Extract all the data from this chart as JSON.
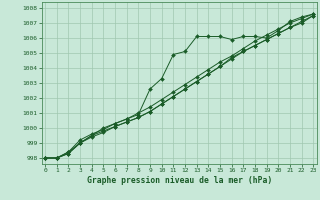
{
  "title": "Graphe pression niveau de la mer (hPa)",
  "bg_color": "#c8e8d8",
  "grid_color": "#a0c8b0",
  "line_color": "#1a5c28",
  "xlim": [
    -0.3,
    23.3
  ],
  "ylim": [
    997.6,
    1008.4
  ],
  "yticks": [
    998,
    999,
    1000,
    1001,
    1002,
    1003,
    1004,
    1005,
    1006,
    1007,
    1008
  ],
  "xticks": [
    0,
    1,
    2,
    3,
    4,
    5,
    6,
    7,
    8,
    9,
    10,
    11,
    12,
    13,
    14,
    15,
    16,
    17,
    18,
    19,
    20,
    21,
    22,
    23
  ],
  "series": [
    [
      998.0,
      998.0,
      998.4,
      999.2,
      999.6,
      999.9,
      1000.3,
      1000.6,
      1000.9,
      1002.6,
      1003.3,
      1004.9,
      1005.1,
      1006.1,
      1006.1,
      1006.1,
      1005.9,
      1006.1,
      1006.1,
      1006.0,
      1006.5,
      1007.1,
      1007.4,
      1007.6
    ],
    [
      998.0,
      998.0,
      998.4,
      999.0,
      999.5,
      1000.0,
      1000.3,
      1000.6,
      1001.0,
      1001.4,
      1001.9,
      1002.4,
      1002.9,
      1003.4,
      1003.9,
      1004.4,
      1004.8,
      1005.3,
      1005.8,
      1006.2,
      1006.6,
      1007.0,
      1007.3,
      1007.6
    ],
    [
      998.0,
      998.0,
      998.3,
      999.0,
      999.5,
      999.8,
      1000.1,
      1000.4,
      1000.7,
      1001.1,
      1001.6,
      1002.1,
      1002.6,
      1003.1,
      1003.6,
      1004.1,
      1004.7,
      1005.1,
      1005.5,
      1005.9,
      1006.3,
      1006.7,
      1007.1,
      1007.5
    ],
    [
      998.0,
      998.0,
      998.3,
      999.0,
      999.4,
      999.7,
      1000.1,
      1000.4,
      1000.7,
      1001.1,
      1001.6,
      1002.1,
      1002.6,
      1003.1,
      1003.6,
      1004.1,
      1004.6,
      1005.1,
      1005.5,
      1005.9,
      1006.3,
      1006.7,
      1007.0,
      1007.5
    ]
  ]
}
